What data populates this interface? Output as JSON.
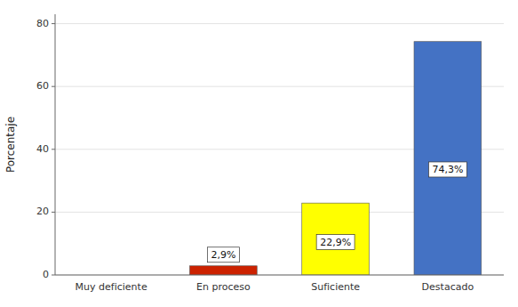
{
  "chart_data": {
    "type": "bar",
    "categories": [
      "Muy deficiente",
      "En proceso",
      "Suficiente",
      "Destacado"
    ],
    "values": [
      0.0,
      2.9,
      22.9,
      74.3
    ],
    "colors": [
      "#cc2200",
      "#cc2200",
      "#ffff00",
      "#4472c4"
    ],
    "data_labels": true,
    "value_labels": [
      null,
      "2,9%",
      "22,9%",
      "74,3%"
    ],
    "ylabel": "Porcentaje",
    "ylim": [
      0,
      83
    ],
    "yticks": [
      0,
      20,
      40,
      60,
      80
    ],
    "grid": true
  }
}
